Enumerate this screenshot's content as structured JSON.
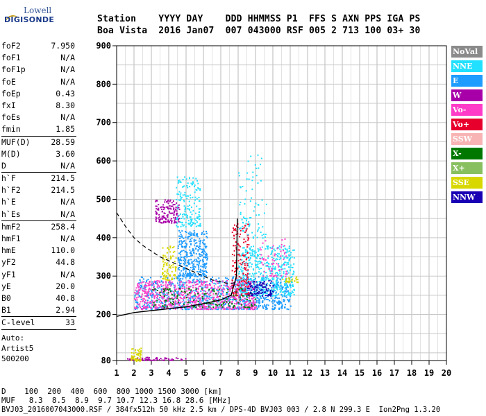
{
  "logo": {
    "line1": "Lowell",
    "line2": "DIGISONDE"
  },
  "header": {
    "line1": "Station    YYYY DAY    DDD HHMMSS P1  FFS S AXN PPS IGA PS",
    "line2": "Boa Vista  2016 Jan07  007 043000 RSF 005 2 713 100 03+ 30"
  },
  "params": [
    {
      "name": "foF2",
      "value": "7.950"
    },
    {
      "name": "foF1",
      "value": "N/A"
    },
    {
      "name": "foF1p",
      "value": "N/A"
    },
    {
      "name": "foE",
      "value": "N/A"
    },
    {
      "name": "foEp",
      "value": "0.43"
    },
    {
      "name": "fxI",
      "value": "8.30"
    },
    {
      "name": "foEs",
      "value": "N/A"
    },
    {
      "name": "fmin",
      "value": "1.85",
      "sep": true
    },
    {
      "name": "MUF(D)",
      "value": "28.59"
    },
    {
      "name": "M(D)",
      "value": "3.60"
    },
    {
      "name": "D",
      "value": "N/A",
      "sep": true
    },
    {
      "name": "h`F",
      "value": "214.5"
    },
    {
      "name": "h`F2",
      "value": "214.5"
    },
    {
      "name": "h`E",
      "value": "N/A"
    },
    {
      "name": "h`Es",
      "value": "N/A",
      "sep": true
    },
    {
      "name": "hmF2",
      "value": "258.4"
    },
    {
      "name": "hmF1",
      "value": "N/A"
    },
    {
      "name": "hmE",
      "value": "110.0"
    },
    {
      "name": "yF2",
      "value": "44.8"
    },
    {
      "name": "yF1",
      "value": "N/A"
    },
    {
      "name": "yE",
      "value": "20.0"
    },
    {
      "name": "B0",
      "value": "40.8"
    },
    {
      "name": "B1",
      "value": "2.94",
      "sep": true
    },
    {
      "name": "C-level",
      "value": "33",
      "sep": true
    }
  ],
  "autoscale": {
    "line1": "Auto:",
    "line2": "Artist5",
    "line3": "500200"
  },
  "footer": {
    "line1": "D    100  200  400  600  800 1000 1500 3000 [km]",
    "line2": "MUF   8.3  8.5  8.9  9.7 10.7 12.3 16.8 28.6 [MHz]",
    "line3": "BVJ03_2016007043000.RSF / 384fx512h 50 kHz 2.5 km / DPS-4D BVJ03 003 / 2.8 N 299.3 E  Ion2Png 1.3.20"
  },
  "legend": [
    {
      "label": "NoVal",
      "color": "#8a8a8a"
    },
    {
      "label": "NNE",
      "color": "#22e0ff"
    },
    {
      "label": "E",
      "color": "#1e9cff"
    },
    {
      "label": "W",
      "color": "#a800a8"
    },
    {
      "label": "Vo-",
      "color": "#ff3cc8"
    },
    {
      "label": "Vo+",
      "color": "#e8002c"
    },
    {
      "label": "SSW",
      "color": "#f8b4b4"
    },
    {
      "label": "X-",
      "color": "#007800"
    },
    {
      "label": "X+",
      "color": "#88c060"
    },
    {
      "label": "SSE",
      "color": "#d8d800"
    },
    {
      "label": "NNW",
      "color": "#1a00b4"
    }
  ],
  "chart_data": {
    "type": "scatter",
    "xlim": [
      1,
      20
    ],
    "ylim": [
      80,
      900
    ],
    "x_ticks": [
      1,
      2,
      3,
      4,
      5,
      6,
      7,
      8,
      9,
      10,
      11,
      12,
      13,
      14,
      15,
      16,
      17,
      18,
      19,
      20
    ],
    "y_ticks": [
      80,
      200,
      300,
      400,
      500,
      600,
      700,
      800,
      900
    ],
    "grid": true,
    "x_minor": true,
    "title": "",
    "xlabel": "",
    "ylabel": "",
    "clusters": [
      {
        "series": "E",
        "x": [
          2.0,
          11.0
        ],
        "y": [
          215,
          300
        ],
        "density": 900
      },
      {
        "series": "Vo-",
        "x": [
          2.0,
          9.0
        ],
        "y": [
          215,
          290
        ],
        "density": 700
      },
      {
        "series": "NNE",
        "x": [
          8.0,
          11.2
        ],
        "y": [
          250,
          380
        ],
        "density": 500
      },
      {
        "series": "E",
        "x": [
          4.5,
          6.2
        ],
        "y": [
          300,
          420
        ],
        "density": 350
      },
      {
        "series": "W",
        "x": [
          3.2,
          4.6
        ],
        "y": [
          440,
          500
        ],
        "density": 140
      },
      {
        "series": "NNE",
        "x": [
          4.4,
          5.8
        ],
        "y": [
          430,
          560
        ],
        "density": 160
      },
      {
        "series": "SSE",
        "x": [
          3.6,
          4.4
        ],
        "y": [
          290,
          380
        ],
        "density": 90
      },
      {
        "series": "Vo+",
        "x": [
          7.6,
          8.6
        ],
        "y": [
          250,
          440
        ],
        "density": 160
      },
      {
        "series": "X-",
        "x": [
          3.0,
          9.0
        ],
        "y": [
          220,
          270
        ],
        "density": 140
      },
      {
        "series": "NNW",
        "x": [
          8.5,
          10.0
        ],
        "y": [
          250,
          290
        ],
        "density": 90
      },
      {
        "series": "W",
        "x": [
          1.6,
          5.0
        ],
        "y": [
          82,
          90
        ],
        "density": 70
      },
      {
        "series": "SSE",
        "x": [
          1.8,
          2.4
        ],
        "y": [
          80,
          115
        ],
        "density": 60
      },
      {
        "series": "NNE",
        "x": [
          8.0,
          9.6
        ],
        "y": [
          400,
          620
        ],
        "density": 80
      },
      {
        "series": "SSE",
        "x": [
          10.5,
          11.5
        ],
        "y": [
          285,
          300
        ],
        "density": 25
      },
      {
        "series": "Vo-",
        "x": [
          9.2,
          10.8
        ],
        "y": [
          300,
          400
        ],
        "density": 60
      }
    ],
    "profile_solid": {
      "x": [
        1.0,
        2.0,
        3.0,
        4.0,
        5.0,
        6.0,
        7.0,
        7.6,
        7.9,
        7.95
      ],
      "y": [
        195,
        205,
        210,
        215,
        220,
        228,
        238,
        250,
        300,
        450
      ]
    },
    "profile_dashed": {
      "x": [
        1.0,
        1.5,
        2.0,
        2.5,
        3.0,
        3.5,
        4.0,
        4.5,
        5.0,
        5.5,
        6.0,
        6.5,
        7.0,
        7.5,
        8.0
      ],
      "y": [
        465,
        430,
        400,
        380,
        365,
        350,
        340,
        330,
        320,
        310,
        300,
        290,
        285,
        280,
        285
      ]
    }
  }
}
